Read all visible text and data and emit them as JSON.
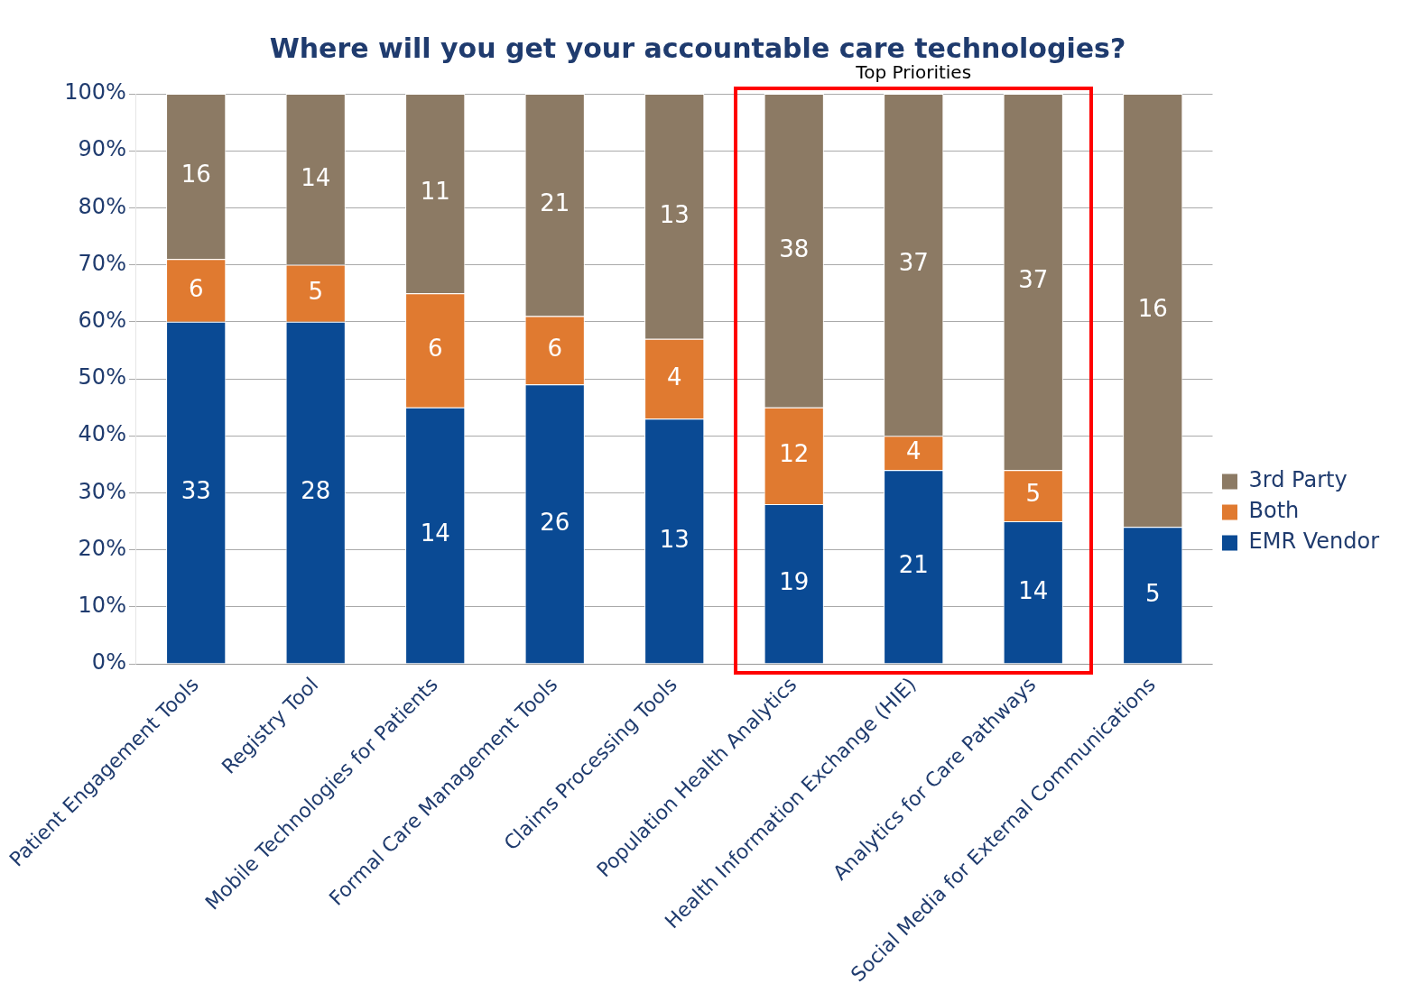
{
  "chart_data": {
    "type": "bar",
    "title": "Where will you get your accountable care technologies?",
    "categories": [
      "Patient Engagement Tools",
      "Registry Tool",
      "Mobile Technologies for Patients",
      "Formal Care Management Tools",
      "Claims Processing Tools",
      "Population Health Analytics",
      "Health Information Exchange (HIE)",
      "Analytics for Care Pathways",
      "Social Media for External Communications"
    ],
    "stacked": true,
    "series": [
      {
        "name": "EMR Vendor",
        "color": "#0a4a94",
        "values": [
          60,
          60,
          45,
          49,
          43,
          28,
          34,
          25,
          24
        ]
      },
      {
        "name": "Both",
        "color": "#e07a30",
        "values": [
          11,
          10,
          20,
          12,
          14,
          17,
          6,
          9,
          null
        ]
      },
      {
        "name": "3rd Party",
        "color": "#8c7a64",
        "values": [
          29,
          30,
          35,
          39,
          43,
          55,
          60,
          66,
          76
        ]
      }
    ],
    "ylim": [
      0,
      100
    ],
    "yticks": [
      {
        "value": 0,
        "label": "0%"
      },
      {
        "value": 10,
        "label": "10%"
      },
      {
        "value": 20,
        "label": "20%"
      },
      {
        "value": 30,
        "label": "30%"
      },
      {
        "value": 40,
        "label": "40%"
      },
      {
        "value": 50,
        "label": "50%"
      },
      {
        "value": 60,
        "label": "60%"
      },
      {
        "value": 70,
        "label": "70%"
      },
      {
        "value": 80,
        "label": "80%"
      },
      {
        "value": 90,
        "label": "90%"
      },
      {
        "value": 100,
        "label": "100%"
      }
    ],
    "grid": "y",
    "legend": "right",
    "annotations": [
      "Top Priorities",
      "33",
      "6",
      "16",
      "28",
      "5",
      "14",
      "14",
      "6",
      "11",
      "26",
      "6",
      "21",
      "13",
      "4",
      "13",
      "19",
      "12",
      "38",
      "21",
      "4",
      "37",
      "14",
      "5",
      "37",
      "5",
      "16"
    ]
  }
}
